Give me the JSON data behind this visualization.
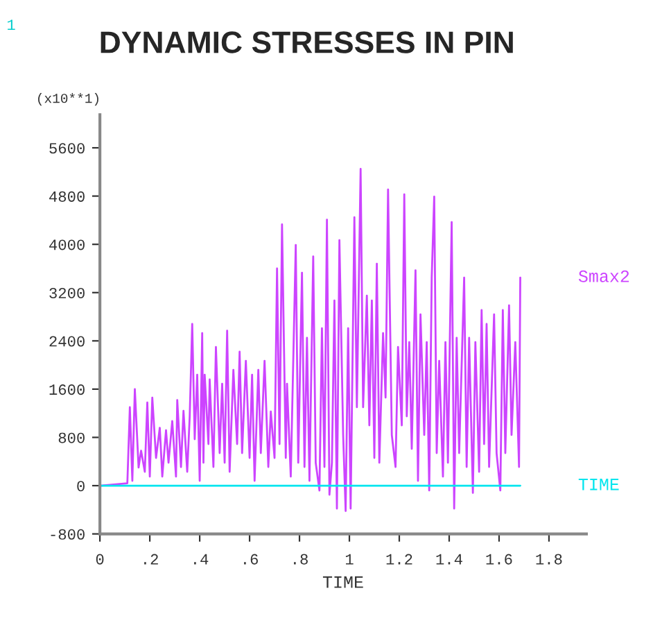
{
  "chart_data": {
    "type": "line",
    "title": "DYNAMIC STRESSES IN PIN",
    "xlabel": "TIME",
    "ylabel": "(x10**1)",
    "annotations": [
      "1"
    ],
    "xlim": [
      0,
      1.95
    ],
    "ylim": [
      -800,
      6150
    ],
    "xticks": [
      0,
      {
        "value": 0.2,
        "label": ".2"
      },
      {
        "value": 0.4,
        "label": ".4"
      },
      {
        "value": 0.6,
        "label": ".6"
      },
      {
        "value": 0.8,
        "label": ".8"
      },
      1,
      1.2,
      1.4,
      1.6,
      1.8
    ],
    "yticks": [
      -800,
      0,
      800,
      1600,
      2400,
      3200,
      4000,
      4800,
      5600
    ],
    "grid": false,
    "legend": false,
    "series": [
      {
        "name": "Smax2",
        "color": "#cc44ff",
        "x": [
          0,
          0.11,
          0.12,
          0.13,
          0.14,
          0.155,
          0.165,
          0.18,
          0.19,
          0.2,
          0.21,
          0.225,
          0.24,
          0.25,
          0.265,
          0.275,
          0.29,
          0.305,
          0.31,
          0.325,
          0.335,
          0.35,
          0.36,
          0.37,
          0.38,
          0.39,
          0.4,
          0.41,
          0.415,
          0.42,
          0.435,
          0.44,
          0.455,
          0.465,
          0.48,
          0.49,
          0.5,
          0.51,
          0.52,
          0.535,
          0.55,
          0.56,
          0.57,
          0.585,
          0.6,
          0.61,
          0.62,
          0.635,
          0.645,
          0.66,
          0.675,
          0.685,
          0.7,
          0.71,
          0.72,
          0.73,
          0.745,
          0.75,
          0.765,
          0.785,
          0.795,
          0.81,
          0.82,
          0.83,
          0.84,
          0.855,
          0.865,
          0.88,
          0.89,
          0.9,
          0.91,
          0.92,
          0.93,
          0.94,
          0.95,
          0.96,
          0.975,
          0.985,
          0.995,
          1.005,
          1.02,
          1.03,
          1.045,
          1.055,
          1.07,
          1.08,
          1.09,
          1.1,
          1.11,
          1.12,
          1.135,
          1.145,
          1.155,
          1.17,
          1.185,
          1.195,
          1.21,
          1.22,
          1.23,
          1.24,
          1.25,
          1.265,
          1.275,
          1.285,
          1.3,
          1.31,
          1.32,
          1.33,
          1.34,
          1.35,
          1.36,
          1.375,
          1.385,
          1.395,
          1.41,
          1.42,
          1.43,
          1.44,
          1.46,
          1.47,
          1.48,
          1.495,
          1.505,
          1.52,
          1.53,
          1.54,
          1.55,
          1.56,
          1.58,
          1.59,
          1.605,
          1.615,
          1.625,
          1.64,
          1.65,
          1.665,
          1.68,
          1.685
        ],
        "values": [
          0,
          40,
          1300,
          80,
          1600,
          300,
          580,
          230,
          1380,
          150,
          1460,
          460,
          960,
          150,
          920,
          380,
          1070,
          150,
          1420,
          310,
          1240,
          230,
          1150,
          2680,
          770,
          1840,
          80,
          2530,
          380,
          1840,
          690,
          1760,
          310,
          2300,
          540,
          1690,
          380,
          2570,
          230,
          1920,
          690,
          2220,
          540,
          2070,
          460,
          1840,
          80,
          1920,
          540,
          2070,
          310,
          1230,
          460,
          3600,
          690,
          4330,
          460,
          1690,
          150,
          3990,
          380,
          3530,
          310,
          2450,
          80,
          3800,
          380,
          -80,
          2610,
          310,
          4410,
          -150,
          380,
          3070,
          -380,
          4070,
          840,
          -420,
          2610,
          -380,
          4450,
          1300,
          5250,
          1300,
          3150,
          1000,
          3070,
          460,
          3680,
          380,
          2530,
          1460,
          4910,
          840,
          310,
          2300,
          1000,
          4830,
          1150,
          2380,
          610,
          3570,
          80,
          2840,
          840,
          2380,
          -80,
          3450,
          4790,
          540,
          2070,
          150,
          2380,
          380,
          4370,
          -380,
          2450,
          540,
          3450,
          310,
          2450,
          -120,
          2380,
          230,
          2910,
          690,
          2680,
          310,
          2840,
          540,
          -80,
          2910,
          540,
          2990,
          840,
          2380,
          310,
          3450
        ]
      },
      {
        "name": "TIME",
        "color": "#00e5ee",
        "x": [
          0,
          1.685
        ],
        "values": [
          0,
          0
        ]
      }
    ]
  }
}
